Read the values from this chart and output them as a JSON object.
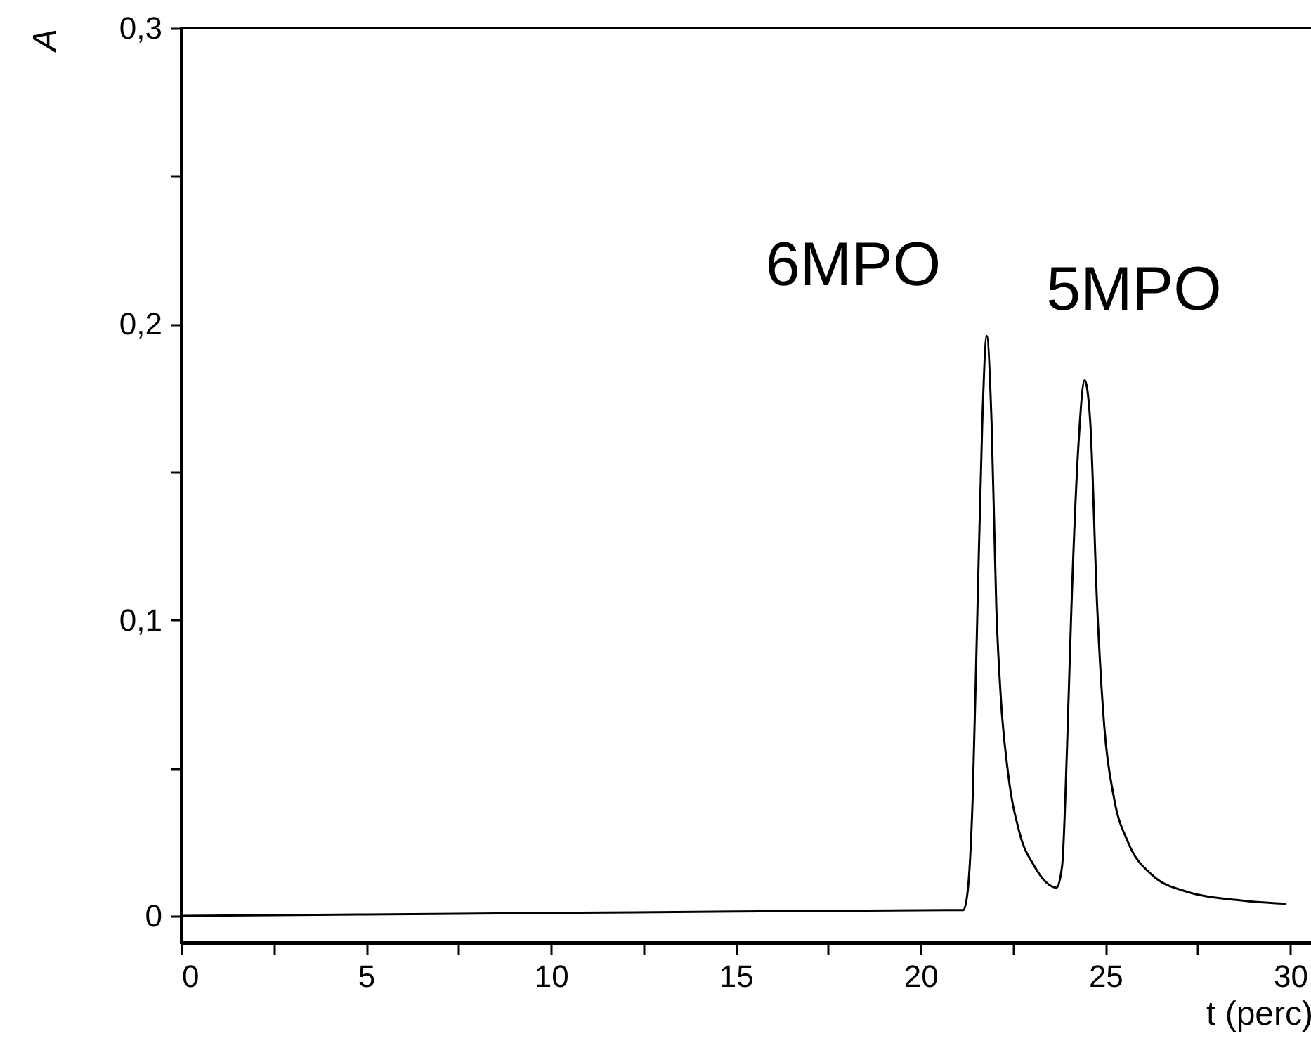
{
  "chart_data": {
    "type": "line",
    "xlabel": "t (perc)",
    "ylabel": "A",
    "x": [
      0,
      5,
      10,
      15,
      21.1,
      21.16,
      21.28,
      21.41,
      21.54,
      21.67,
      21.79,
      21.92,
      22.05,
      22.18,
      22.37,
      22.68,
      23.07,
      23.68,
      23.83,
      23.96,
      24.08,
      24.27,
      24.44,
      24.59,
      24.78,
      24.97,
      25.23,
      25.61,
      26.25,
      27.26,
      28.54,
      29.9
    ],
    "series": [
      {
        "color": "#000000",
        "values": [
          0,
          0.0005,
          0.001,
          0.0015,
          0.002,
          0.002,
          0.009,
          0.04,
          0.104,
          0.167,
          0.196,
          0.167,
          0.104,
          0.072,
          0.048,
          0.028,
          0.017,
          0.0096,
          0.017,
          0.056,
          0.104,
          0.159,
          0.181,
          0.167,
          0.104,
          0.064,
          0.04,
          0.025,
          0.014,
          0.008,
          0.0054,
          0.0041
        ]
      }
    ],
    "xlim": [
      0,
      30.6
    ],
    "ylim": [
      -0.009,
      0.3
    ],
    "xticks": [
      0,
      {
        "value": 2.5,
        "label": null
      },
      5,
      {
        "value": 7.5,
        "label": null
      },
      10,
      {
        "value": 12.5,
        "label": null
      },
      15,
      {
        "value": 17.5,
        "label": null
      },
      20,
      {
        "value": 22.5,
        "label": null
      },
      25,
      {
        "value": 27.5,
        "label": null
      },
      30
    ],
    "yticks": [
      0,
      {
        "value": 0.05,
        "label": null
      },
      {
        "value": 0.1,
        "label": "0,1"
      },
      {
        "value": 0.15,
        "label": null
      },
      {
        "value": 0.2,
        "label": "0,2"
      },
      {
        "value": 0.25,
        "label": null
      },
      {
        "value": 0.3,
        "label": "0,3"
      }
    ],
    "annotations": [
      "6MPO",
      "5MPO"
    ],
    "grid": false,
    "line_style": "solid"
  }
}
